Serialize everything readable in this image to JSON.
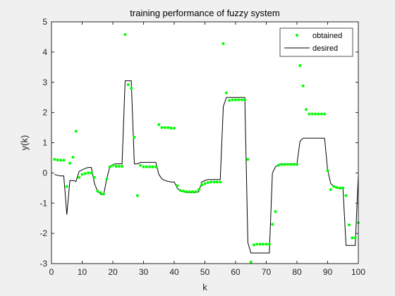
{
  "chart_data": {
    "type": "line",
    "title": "training performance of fuzzy system",
    "xlabel": "k",
    "ylabel": "y(k)",
    "xlim": [
      0,
      100
    ],
    "ylim": [
      -3,
      5
    ],
    "xticks": [
      0,
      10,
      20,
      30,
      40,
      50,
      60,
      70,
      80,
      90,
      100
    ],
    "yticks": [
      -3,
      -2,
      -1,
      0,
      1,
      2,
      3,
      4,
      5
    ],
    "legend_position": "top-right",
    "grid": false,
    "colors": {
      "obtained": "#00ff00",
      "desired": "#000000",
      "axes_bg": "#ffffff",
      "figure_bg": "#f0f0f0"
    },
    "series": [
      {
        "name": "obtained",
        "style": "markers",
        "x": [
          1,
          2,
          3,
          4,
          5,
          6,
          7,
          8,
          9,
          10,
          11,
          12,
          13,
          14,
          15,
          16,
          17,
          18,
          19,
          20,
          21,
          22,
          23,
          24,
          25,
          26,
          27,
          28,
          29,
          30,
          31,
          32,
          33,
          34,
          35,
          36,
          37,
          38,
          39,
          40,
          41,
          42,
          43,
          44,
          45,
          46,
          47,
          48,
          49,
          50,
          51,
          52,
          53,
          54,
          55,
          56,
          57,
          58,
          59,
          60,
          61,
          62,
          63,
          64,
          65,
          66,
          67,
          68,
          69,
          70,
          71,
          72,
          73,
          74,
          75,
          76,
          77,
          78,
          79,
          80,
          81,
          82,
          83,
          84,
          85,
          86,
          87,
          88,
          89,
          90,
          91,
          92,
          93,
          94,
          95,
          96,
          97,
          98,
          99,
          100
        ],
        "y": [
          0.45,
          0.43,
          0.42,
          0.42,
          -0.45,
          0.32,
          0.52,
          1.38,
          -0.15,
          -0.05,
          -0.02,
          0.0,
          0.0,
          -0.15,
          -0.6,
          -0.65,
          -0.7,
          -0.2,
          0.2,
          0.25,
          0.22,
          0.22,
          0.22,
          4.58,
          2.92,
          2.8,
          1.18,
          -0.75,
          0.25,
          0.2,
          0.2,
          0.2,
          0.2,
          0.2,
          1.6,
          1.5,
          1.5,
          1.5,
          1.48,
          1.48,
          -0.42,
          -0.58,
          -0.6,
          -0.62,
          -0.62,
          -0.62,
          -0.62,
          -0.55,
          -0.4,
          -0.35,
          -0.32,
          -0.3,
          -0.3,
          -0.3,
          -0.3,
          4.28,
          2.65,
          2.4,
          2.42,
          2.42,
          2.42,
          2.42,
          2.42,
          0.45,
          -2.95,
          -2.38,
          -2.36,
          -2.36,
          -2.36,
          -2.36,
          -2.36,
          -1.7,
          -1.28,
          0.25,
          0.28,
          0.28,
          0.28,
          0.28,
          0.28,
          0.28,
          3.55,
          2.88,
          2.1,
          1.95,
          1.95,
          1.95,
          1.95,
          1.95,
          1.95,
          0.08,
          -0.55,
          -0.45,
          -0.48,
          -0.5,
          -0.5,
          -0.75,
          -1.72,
          -2.15,
          -2.15,
          -1.65
        ]
      },
      {
        "name": "desired",
        "style": "line",
        "x": [
          1,
          2,
          3,
          4,
          5,
          6,
          7,
          8,
          9,
          10,
          11,
          12,
          13,
          14,
          15,
          16,
          17,
          18,
          19,
          20,
          21,
          22,
          23,
          24,
          25,
          26,
          27,
          28,
          29,
          30,
          31,
          32,
          33,
          34,
          35,
          36,
          37,
          38,
          39,
          40,
          41,
          42,
          43,
          44,
          45,
          46,
          47,
          48,
          49,
          50,
          51,
          52,
          53,
          54,
          55,
          56,
          57,
          58,
          59,
          60,
          61,
          62,
          63,
          64,
          65,
          66,
          67,
          68,
          69,
          70,
          71,
          72,
          73,
          74,
          75,
          76,
          77,
          78,
          79,
          80,
          81,
          82,
          83,
          84,
          85,
          86,
          87,
          88,
          89,
          90,
          91,
          92,
          93,
          94,
          95,
          96,
          97,
          98,
          99,
          100
        ],
        "y": [
          -0.05,
          -0.08,
          -0.1,
          -0.1,
          -1.38,
          -0.25,
          -0.25,
          -0.28,
          0.05,
          0.1,
          0.15,
          0.18,
          0.18,
          -0.35,
          -0.6,
          -0.7,
          -0.72,
          -0.2,
          0.2,
          0.28,
          0.3,
          0.3,
          0.3,
          3.05,
          3.05,
          3.05,
          0.3,
          0.3,
          0.35,
          0.35,
          0.35,
          0.35,
          0.35,
          0.35,
          -0.05,
          -0.2,
          -0.25,
          -0.28,
          -0.3,
          -0.3,
          -0.5,
          -0.6,
          -0.62,
          -0.65,
          -0.65,
          -0.65,
          -0.65,
          -0.62,
          -0.3,
          -0.25,
          -0.22,
          -0.22,
          -0.22,
          -0.22,
          -0.22,
          2.2,
          2.5,
          2.5,
          2.5,
          2.5,
          2.5,
          2.5,
          2.5,
          -2.3,
          -2.65,
          -2.65,
          -2.65,
          -2.65,
          -2.65,
          -2.65,
          -2.65,
          0.0,
          0.2,
          0.28,
          0.3,
          0.3,
          0.3,
          0.3,
          0.3,
          0.3,
          1.05,
          1.15,
          1.15,
          1.15,
          1.15,
          1.15,
          1.15,
          1.15,
          1.15,
          0.1,
          -0.35,
          -0.45,
          -0.5,
          -0.52,
          -0.52,
          -2.4,
          -2.4,
          -2.4,
          -2.4,
          -0.05
        ]
      }
    ]
  }
}
